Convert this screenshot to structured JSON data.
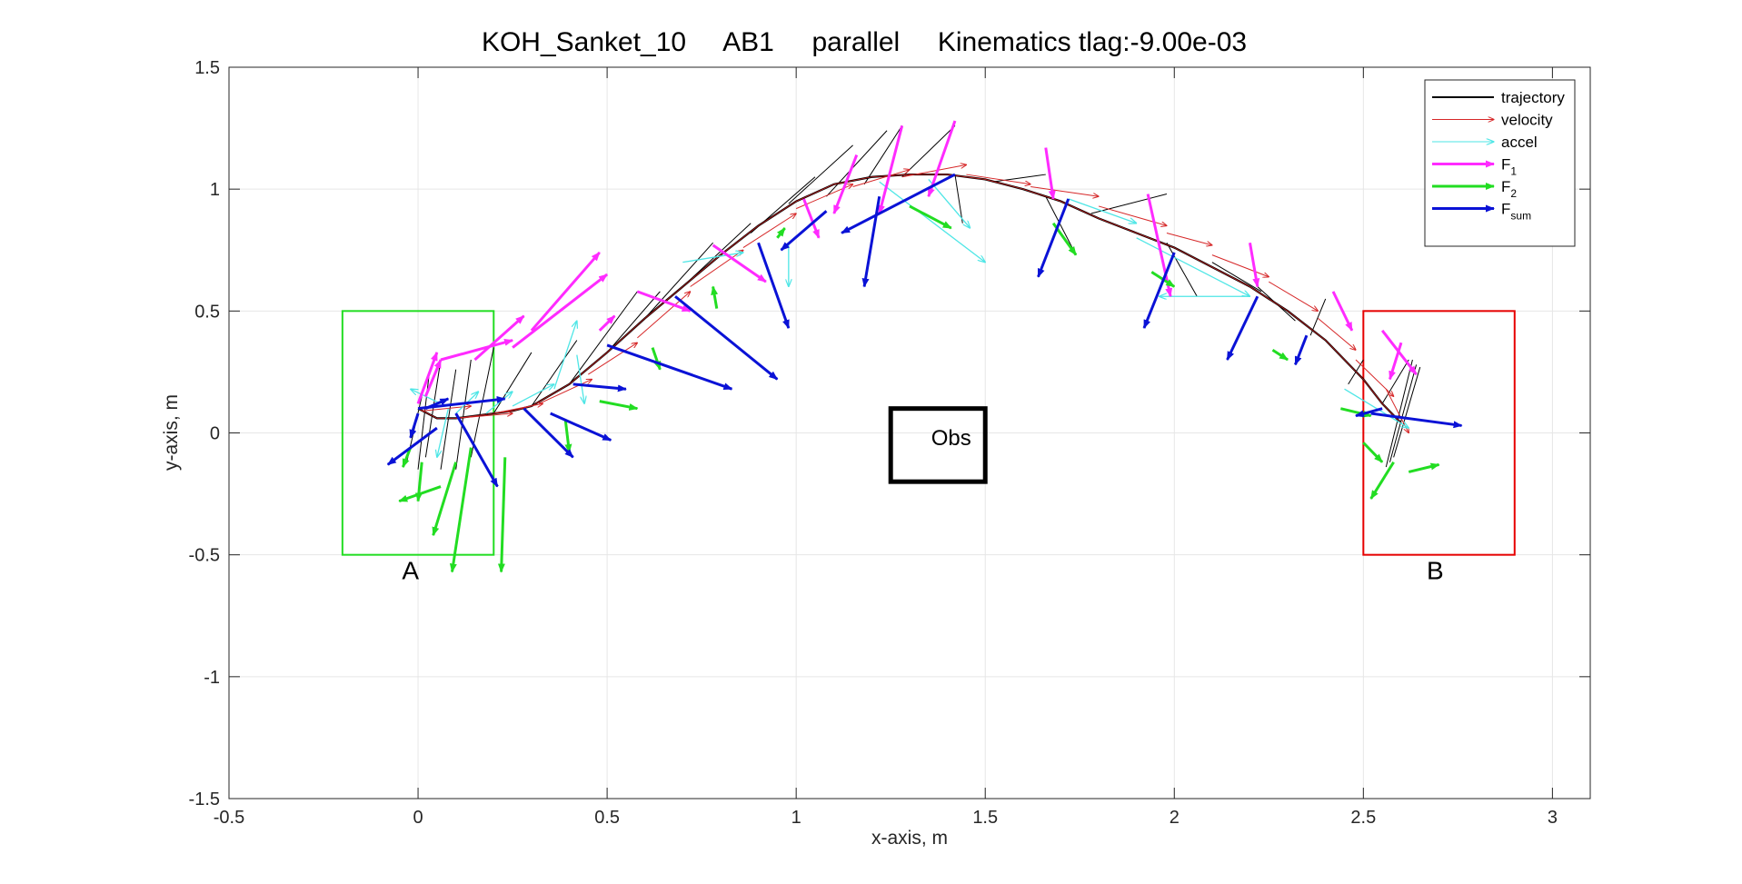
{
  "chart_data": {
    "type": "line",
    "title": "KOH_Sanket_10     AB1     parallel     Kinematics tlag:-9.00e-03",
    "xlabel": "x-axis, m",
    "ylabel": "y-axis, m",
    "xlim": [
      -0.5,
      3.1
    ],
    "ylim": [
      -1.5,
      1.5
    ],
    "xticks": [
      -0.5,
      0,
      0.5,
      1,
      1.5,
      2,
      2.5,
      3
    ],
    "xtick_labels": [
      "-0.5",
      "0",
      "0.5",
      "1",
      "1.5",
      "2",
      "2.5",
      "3"
    ],
    "yticks": [
      -1.5,
      -1,
      -0.5,
      0,
      0.5,
      1,
      1.5
    ],
    "ytick_labels": [
      "-1.5",
      "-1",
      "-0.5",
      "0",
      "0.5",
      "1",
      "1.5"
    ],
    "grid": true,
    "legend_position": "top-right",
    "legend": [
      {
        "label": "trajectory",
        "sub": "",
        "color": "#000000",
        "style": "line"
      },
      {
        "label": "velocity",
        "sub": "",
        "color": "#d62728",
        "style": "thin-arrow"
      },
      {
        "label": "accel",
        "sub": "",
        "color": "#4ee6e6",
        "style": "thin-arrow"
      },
      {
        "label": "F",
        "sub": "1",
        "color": "#ff2bff",
        "style": "thick-arrow"
      },
      {
        "label": "F",
        "sub": "2",
        "color": "#22dd22",
        "style": "thick-arrow"
      },
      {
        "label": "F",
        "sub": "sum",
        "color": "#0a12d6",
        "style": "thick-arrow"
      }
    ],
    "trajectory": {
      "x": [
        0,
        0.05,
        0.1,
        0.15,
        0.2,
        0.25,
        0.3,
        0.4,
        0.5,
        0.6,
        0.7,
        0.8,
        0.9,
        1.0,
        1.1,
        1.2,
        1.3,
        1.4,
        1.5,
        1.6,
        1.7,
        1.8,
        1.9,
        2.0,
        2.1,
        2.2,
        2.3,
        2.4,
        2.5,
        2.55,
        2.6
      ],
      "y": [
        0.1,
        0.06,
        0.06,
        0.07,
        0.08,
        0.09,
        0.11,
        0.2,
        0.33,
        0.47,
        0.6,
        0.73,
        0.85,
        0.95,
        1.02,
        1.05,
        1.06,
        1.06,
        1.04,
        1.0,
        0.95,
        0.88,
        0.82,
        0.76,
        0.68,
        0.6,
        0.5,
        0.38,
        0.22,
        0.12,
        0.04
      ]
    },
    "black_lines": [
      [
        -0.03,
        -0.12,
        0.01,
        0.15
      ],
      [
        0.0,
        -0.15,
        0.03,
        0.25
      ],
      [
        0.02,
        -0.1,
        0.06,
        0.3
      ],
      [
        0.06,
        -0.15,
        0.1,
        0.26
      ],
      [
        0.1,
        -0.15,
        0.14,
        0.3
      ],
      [
        0.14,
        -0.1,
        0.2,
        0.35
      ],
      [
        0.2,
        0.08,
        0.3,
        0.33
      ],
      [
        0.3,
        0.11,
        0.42,
        0.38
      ],
      [
        0.4,
        0.2,
        0.58,
        0.58
      ],
      [
        0.5,
        0.33,
        0.64,
        0.58
      ],
      [
        0.6,
        0.47,
        0.78,
        0.78
      ],
      [
        0.7,
        0.6,
        0.88,
        0.86
      ],
      [
        0.88,
        0.82,
        1.05,
        1.05
      ],
      [
        0.98,
        0.94,
        1.15,
        1.18
      ],
      [
        1.08,
        0.97,
        1.24,
        1.24
      ],
      [
        1.18,
        1.02,
        1.28,
        1.26
      ],
      [
        1.28,
        1.05,
        1.42,
        1.26
      ],
      [
        1.42,
        1.06,
        1.44,
        0.86
      ],
      [
        1.52,
        1.03,
        1.66,
        1.06
      ],
      [
        1.66,
        0.97,
        1.74,
        0.73
      ],
      [
        1.78,
        0.9,
        1.98,
        0.98
      ],
      [
        1.98,
        0.78,
        2.06,
        0.56
      ],
      [
        2.1,
        0.7,
        2.23,
        0.58
      ],
      [
        2.22,
        0.6,
        2.32,
        0.46
      ],
      [
        2.36,
        0.4,
        2.4,
        0.55
      ],
      [
        2.5,
        0.3,
        2.46,
        0.2
      ],
      [
        2.55,
        0.12,
        2.62,
        0.3
      ],
      [
        2.56,
        -0.14,
        2.63,
        0.3
      ],
      [
        2.57,
        -0.12,
        2.64,
        0.28
      ],
      [
        2.58,
        -0.1,
        2.65,
        0.27
      ]
    ],
    "velocity": [
      [
        0.01,
        0.09,
        0.14,
        0.11
      ],
      [
        0.1,
        0.06,
        0.25,
        0.08
      ],
      [
        0.2,
        0.08,
        0.33,
        0.12
      ],
      [
        0.32,
        0.12,
        0.46,
        0.22
      ],
      [
        0.45,
        0.24,
        0.58,
        0.37
      ],
      [
        0.58,
        0.39,
        0.72,
        0.58
      ],
      [
        0.72,
        0.6,
        0.86,
        0.75
      ],
      [
        0.86,
        0.76,
        1.0,
        0.9
      ],
      [
        1.0,
        0.92,
        1.15,
        1.02
      ],
      [
        1.15,
        1.01,
        1.3,
        1.08
      ],
      [
        1.28,
        1.05,
        1.45,
        1.1
      ],
      [
        1.45,
        1.06,
        1.62,
        1.02
      ],
      [
        1.62,
        1.01,
        1.8,
        0.97
      ],
      [
        1.8,
        0.93,
        1.98,
        0.85
      ],
      [
        1.98,
        0.82,
        2.1,
        0.77
      ],
      [
        2.1,
        0.73,
        2.25,
        0.64
      ],
      [
        2.25,
        0.62,
        2.38,
        0.5
      ],
      [
        2.38,
        0.47,
        2.48,
        0.34
      ],
      [
        2.48,
        0.3,
        2.58,
        0.15
      ],
      [
        2.56,
        0.18,
        2.62,
        0.0
      ]
    ],
    "accel": [
      [
        0.06,
        0.12,
        -0.02,
        0.18
      ],
      [
        0.08,
        0.1,
        0.05,
        -0.1
      ],
      [
        0.1,
        0.08,
        0.16,
        0.17
      ],
      [
        0.18,
        0.08,
        0.25,
        0.17
      ],
      [
        0.25,
        0.11,
        0.36,
        0.2
      ],
      [
        0.36,
        0.18,
        0.42,
        0.46
      ],
      [
        0.42,
        0.32,
        0.44,
        0.12
      ],
      [
        0.7,
        0.7,
        0.86,
        0.74
      ],
      [
        0.98,
        0.78,
        0.98,
        0.6
      ],
      [
        1.22,
        1.03,
        1.5,
        0.7
      ],
      [
        1.35,
        1.04,
        1.46,
        0.84
      ],
      [
        1.72,
        0.96,
        1.9,
        0.86
      ],
      [
        1.9,
        0.8,
        2.2,
        0.56
      ],
      [
        2.2,
        0.56,
        1.96,
        0.56
      ],
      [
        2.45,
        0.18,
        2.62,
        0.02
      ]
    ],
    "F1": [
      [
        0.0,
        0.12,
        0.05,
        0.33
      ],
      [
        0.02,
        0.15,
        0.06,
        0.3
      ],
      [
        0.06,
        0.3,
        0.25,
        0.38
      ],
      [
        0.15,
        0.3,
        0.28,
        0.48
      ],
      [
        0.25,
        0.35,
        0.5,
        0.65
      ],
      [
        0.3,
        0.42,
        0.48,
        0.74
      ],
      [
        0.48,
        0.42,
        0.52,
        0.48
      ],
      [
        0.58,
        0.58,
        0.72,
        0.5
      ],
      [
        0.78,
        0.77,
        0.92,
        0.62
      ],
      [
        1.02,
        0.96,
        1.06,
        0.8
      ],
      [
        1.16,
        1.14,
        1.1,
        0.9
      ],
      [
        1.28,
        1.26,
        1.22,
        0.9
      ],
      [
        1.42,
        1.28,
        1.35,
        0.97
      ],
      [
        1.66,
        1.17,
        1.68,
        0.96
      ],
      [
        1.93,
        0.98,
        1.99,
        0.56
      ],
      [
        2.2,
        0.78,
        2.22,
        0.6
      ],
      [
        2.42,
        0.58,
        2.47,
        0.42
      ],
      [
        2.55,
        0.42,
        2.64,
        0.24
      ],
      [
        2.6,
        0.37,
        2.57,
        0.22
      ]
    ],
    "F2": [
      [
        -0.02,
        -0.06,
        -0.04,
        -0.14
      ],
      [
        0.01,
        -0.12,
        0.0,
        -0.28
      ],
      [
        0.06,
        -0.22,
        -0.05,
        -0.28
      ],
      [
        0.1,
        -0.12,
        0.04,
        -0.42
      ],
      [
        0.14,
        -0.06,
        0.09,
        -0.57
      ],
      [
        0.23,
        -0.1,
        0.22,
        -0.57
      ],
      [
        0.39,
        0.05,
        0.4,
        -0.08
      ],
      [
        0.48,
        0.13,
        0.58,
        0.1
      ],
      [
        0.62,
        0.35,
        0.64,
        0.26
      ],
      [
        0.79,
        0.51,
        0.78,
        0.6
      ],
      [
        0.95,
        0.8,
        0.97,
        0.84
      ],
      [
        1.3,
        0.93,
        1.41,
        0.84
      ],
      [
        1.68,
        0.86,
        1.74,
        0.73
      ],
      [
        1.94,
        0.66,
        2.0,
        0.6
      ],
      [
        2.26,
        0.34,
        2.3,
        0.3
      ],
      [
        2.44,
        0.1,
        2.52,
        0.07
      ],
      [
        2.5,
        -0.04,
        2.55,
        -0.12
      ],
      [
        2.58,
        -0.12,
        2.52,
        -0.27
      ],
      [
        2.62,
        -0.16,
        2.7,
        -0.13
      ]
    ],
    "Fsum": [
      [
        0.0,
        0.08,
        -0.02,
        -0.02
      ],
      [
        0.02,
        0.1,
        0.08,
        0.14
      ],
      [
        0.0,
        0.1,
        0.23,
        0.14
      ],
      [
        0.05,
        0.02,
        -0.08,
        -0.13
      ],
      [
        0.1,
        0.08,
        0.21,
        -0.22
      ],
      [
        0.28,
        0.1,
        0.41,
        -0.1
      ],
      [
        0.35,
        0.08,
        0.51,
        -0.03
      ],
      [
        0.41,
        0.2,
        0.55,
        0.18
      ],
      [
        0.5,
        0.36,
        0.83,
        0.18
      ],
      [
        0.68,
        0.56,
        0.95,
        0.22
      ],
      [
        0.9,
        0.78,
        0.98,
        0.43
      ],
      [
        1.08,
        0.91,
        0.96,
        0.75
      ],
      [
        1.22,
        0.97,
        1.18,
        0.6
      ],
      [
        1.42,
        1.06,
        1.12,
        0.82
      ],
      [
        1.72,
        0.96,
        1.64,
        0.64
      ],
      [
        2.0,
        0.74,
        1.92,
        0.43
      ],
      [
        2.22,
        0.56,
        2.14,
        0.3
      ],
      [
        2.35,
        0.4,
        2.32,
        0.28
      ],
      [
        2.55,
        0.1,
        2.48,
        0.07
      ],
      [
        2.52,
        0.08,
        2.76,
        0.03
      ]
    ],
    "annotations": {
      "start_box": {
        "x0": -0.2,
        "x1": 0.2,
        "y0": -0.5,
        "y1": 0.5,
        "color": "#22dd22",
        "label": "A",
        "label_x": -0.02,
        "label_y": -0.6
      },
      "goal_box": {
        "x0": 2.5,
        "x1": 2.9,
        "y0": -0.5,
        "y1": 0.5,
        "color": "#e60000",
        "label": "B",
        "label_x": 2.69,
        "label_y": -0.6
      },
      "obstacle": {
        "x0": 1.25,
        "x1": 1.5,
        "y0": -0.2,
        "y1": 0.1,
        "color": "#000000",
        "label": "Obs",
        "label_x": 1.41,
        "label_y": -0.05
      }
    }
  }
}
